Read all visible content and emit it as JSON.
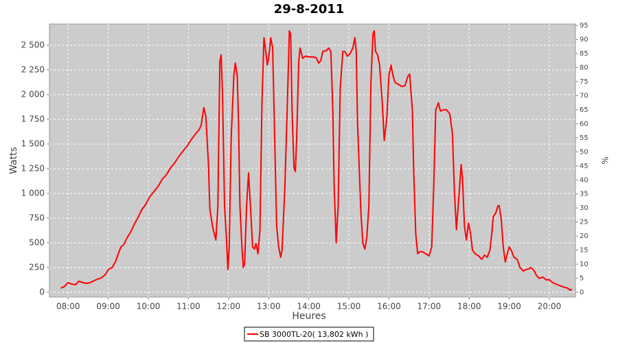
{
  "chart_data": {
    "type": "line",
    "title": "29-8-2011",
    "x_label": "Heures",
    "y_label": "Watts",
    "y2_label": "%",
    "x": [
      "07:49",
      "07:54",
      "08:00",
      "08:05",
      "08:11",
      "08:16",
      "08:22",
      "08:28",
      "08:33",
      "08:39",
      "08:44",
      "08:50",
      "08:55",
      "09:01",
      "09:06",
      "09:11",
      "09:15",
      "09:19",
      "09:23",
      "09:28",
      "09:33",
      "09:39",
      "09:44",
      "09:50",
      "09:56",
      "10:02",
      "10:08",
      "10:15",
      "10:21",
      "10:27",
      "10:33",
      "10:39",
      "10:45",
      "10:52",
      "10:58",
      "11:04",
      "11:10",
      "11:16",
      "11:19",
      "11:23",
      "11:26",
      "11:30",
      "11:32",
      "11:36",
      "11:39",
      "11:41",
      "11:44",
      "11:47",
      "11:49",
      "11:51",
      "11:54",
      "11:57",
      "11:59",
      "12:01",
      "12:04",
      "12:08",
      "12:10",
      "12:13",
      "12:15",
      "12:17",
      "12:20",
      "12:22",
      "12:24",
      "12:27",
      "12:30",
      "12:33",
      "12:36",
      "12:39",
      "12:41",
      "12:44",
      "12:47",
      "12:50",
      "12:53",
      "12:55",
      "12:58",
      "13:00",
      "13:03",
      "13:06",
      "13:09",
      "13:12",
      "13:15",
      "13:18",
      "13:20",
      "13:24",
      "13:28",
      "13:31",
      "13:33",
      "13:35",
      "13:38",
      "13:40",
      "13:42",
      "13:45",
      "13:47",
      "13:51",
      "13:55",
      "14:00",
      "14:06",
      "14:11",
      "14:15",
      "14:18",
      "14:21",
      "14:26",
      "14:30",
      "14:33",
      "14:36",
      "14:38",
      "14:41",
      "14:44",
      "14:47",
      "14:51",
      "14:54",
      "14:58",
      "15:02",
      "15:06",
      "15:09",
      "15:11",
      "15:13",
      "15:18",
      "15:21",
      "15:24",
      "15:27",
      "15:30",
      "15:33",
      "15:36",
      "15:38",
      "15:40",
      "15:43",
      "15:46",
      "15:50",
      "15:53",
      "15:57",
      "16:00",
      "16:03",
      "16:06",
      "16:09",
      "16:14",
      "16:19",
      "16:24",
      "16:28",
      "16:31",
      "16:35",
      "16:37",
      "16:40",
      "16:43",
      "16:46",
      "16:50",
      "16:55",
      "17:00",
      "17:04",
      "17:07",
      "17:10",
      "17:14",
      "17:17",
      "17:22",
      "17:26",
      "17:31",
      "17:35",
      "17:38",
      "17:41",
      "17:44",
      "17:48",
      "17:50",
      "17:53",
      "17:56",
      "17:59",
      "18:02",
      "18:05",
      "18:09",
      "18:14",
      "18:19",
      "18:23",
      "18:27",
      "18:31",
      "18:34",
      "18:36",
      "18:40",
      "18:43",
      "18:45",
      "18:48",
      "18:51",
      "18:54",
      "18:57",
      "19:00",
      "19:03",
      "19:07",
      "19:12",
      "19:16",
      "19:21",
      "19:25",
      "19:29",
      "19:32",
      "19:35",
      "19:38",
      "19:41",
      "19:45",
      "19:50",
      "19:55",
      "20:00",
      "20:05",
      "20:12",
      "20:20",
      "20:27",
      "20:31",
      "20:34"
    ],
    "series": [
      {
        "name": "SB 3000TL-20( 13,802 kWh )",
        "color": "#ff0000",
        "values": [
          42,
          56,
          97,
          83,
          76,
          111,
          97,
          90,
          97,
          118,
          132,
          146,
          174,
          236,
          250,
          312,
          389,
          458,
          479,
          549,
          604,
          688,
          750,
          833,
          889,
          965,
          1014,
          1076,
          1146,
          1188,
          1257,
          1306,
          1368,
          1431,
          1479,
          1542,
          1597,
          1646,
          1687,
          1868,
          1778,
          1292,
          840,
          667,
          583,
          528,
          875,
          2333,
          2403,
          1986,
          875,
          528,
          229,
          458,
          1569,
          2194,
          2319,
          2194,
          1708,
          875,
          458,
          250,
          285,
          875,
          1208,
          840,
          458,
          437,
          493,
          389,
          632,
          1917,
          2576,
          2472,
          2299,
          2368,
          2576,
          2472,
          1569,
          667,
          458,
          354,
          424,
          1014,
          1917,
          2646,
          2611,
          1847,
          1257,
          1222,
          1569,
          2333,
          2472,
          2368,
          2389,
          2382,
          2382,
          2375,
          2319,
          2347,
          2437,
          2444,
          2472,
          2437,
          1847,
          1083,
          500,
          875,
          2056,
          2437,
          2437,
          2389,
          2417,
          2472,
          2576,
          2437,
          1708,
          806,
          493,
          437,
          563,
          875,
          2125,
          2611,
          2646,
          2437,
          2403,
          2299,
          1917,
          1535,
          1778,
          2194,
          2299,
          2194,
          2125,
          2104,
          2083,
          2090,
          2181,
          2208,
          1847,
          1222,
          597,
          389,
          410,
          410,
          389,
          368,
          458,
          1083,
          1847,
          1917,
          1833,
          1847,
          1847,
          1805,
          1604,
          1014,
          632,
          910,
          1292,
          1153,
          667,
          528,
          701,
          597,
          424,
          389,
          368,
          333,
          375,
          354,
          424,
          597,
          764,
          806,
          875,
          875,
          736,
          458,
          306,
          389,
          458,
          424,
          354,
          333,
          250,
          215,
          229,
          236,
          250,
          236,
          208,
          167,
          139,
          153,
          125,
          125,
          97,
          76,
          56,
          42,
          21,
          28
        ]
      }
    ],
    "xlim": [
      "07:32",
      "20:39"
    ],
    "xticks": [
      "08:00",
      "09:00",
      "10:00",
      "11:00",
      "12:00",
      "13:00",
      "14:00",
      "15:00",
      "16:00",
      "17:00",
      "18:00",
      "19:00",
      "20:00"
    ],
    "ylim": [
      -49,
      2715
    ],
    "yticks": [
      0,
      250,
      500,
      750,
      {
        "value": 1000,
        "label": "1 000"
      },
      {
        "value": 1250,
        "label": "1 250"
      },
      {
        "value": 1500,
        "label": "1 500"
      },
      {
        "value": 1750,
        "label": "1 750"
      },
      {
        "value": 2000,
        "label": "2 000"
      },
      {
        "value": 2250,
        "label": "2 250"
      },
      {
        "value": 2500,
        "label": "2 500"
      }
    ],
    "y2lim": [
      -1.7,
      95.5
    ],
    "y2ticks": [
      0,
      5,
      10,
      15,
      20,
      25,
      30,
      35,
      40,
      45,
      50,
      55,
      60,
      65,
      70,
      75,
      80,
      85,
      90,
      95
    ],
    "grid": true
  }
}
